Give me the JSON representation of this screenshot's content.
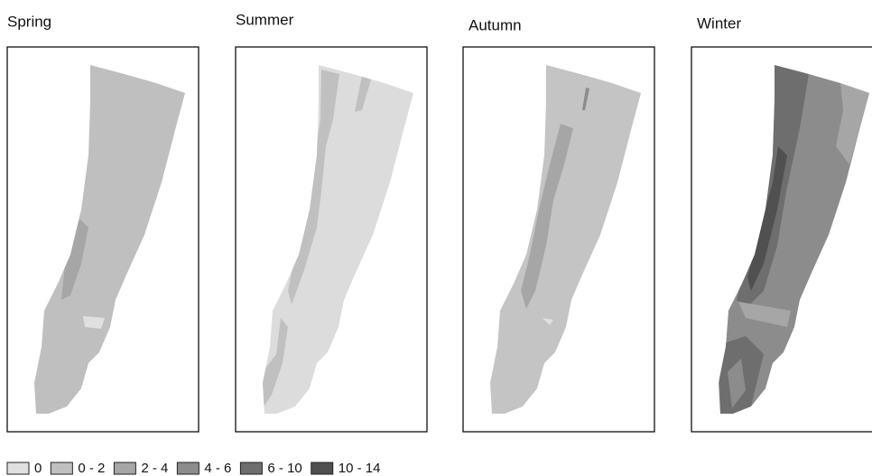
{
  "panels": [
    {
      "title": "Spring"
    },
    {
      "title": "Summer"
    },
    {
      "title": "Autumn"
    },
    {
      "title": "Winter"
    }
  ],
  "legend": [
    {
      "label": "0",
      "color": "#e0e0e0"
    },
    {
      "label": "0 - 2",
      "color": "#c0c0c0"
    },
    {
      "label": "2 - 4",
      "color": "#a6a6a6"
    },
    {
      "label": "4 - 6",
      "color": "#8c8c8c"
    },
    {
      "label": "6 - 10",
      "color": "#6e6e6e"
    },
    {
      "label": "10 - 14",
      "color": "#505050"
    }
  ]
}
